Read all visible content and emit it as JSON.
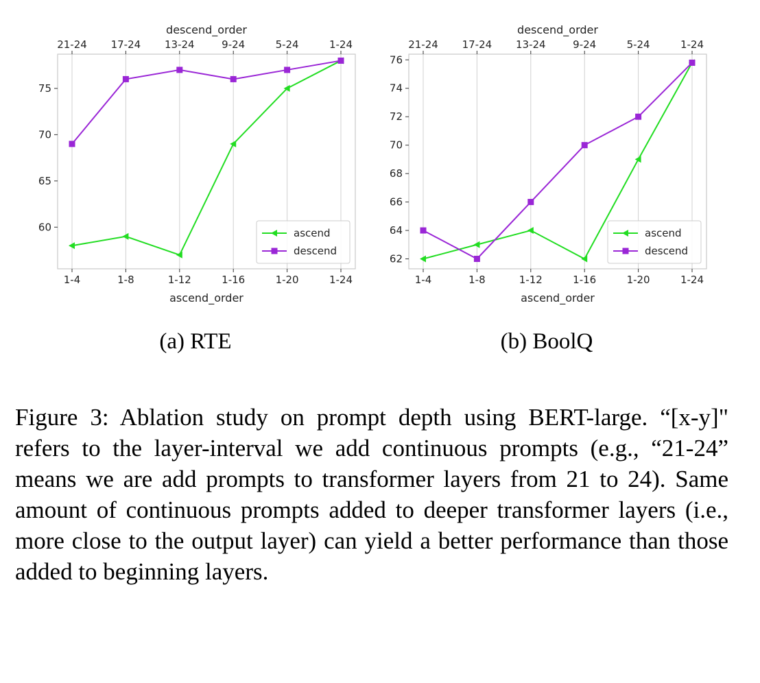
{
  "chart_data": [
    {
      "type": "line",
      "caption": "(a) RTE",
      "xlabel": "ascend_order",
      "x2label": "descend_order",
      "categories": [
        "1-4",
        "1-8",
        "1-12",
        "1-16",
        "1-20",
        "1-24"
      ],
      "top_categories": [
        "21-24",
        "17-24",
        "13-24",
        "9-24",
        "5-24",
        "1-24"
      ],
      "yticks": [
        60,
        65,
        70,
        75
      ],
      "ylim": [
        55.5,
        78.7
      ],
      "grid": "vertical",
      "legend_position": "lower-right",
      "series": [
        {
          "name": "ascend",
          "color": "#22dd22",
          "marker": "triangle-left",
          "values": [
            58,
            59,
            57,
            69,
            75,
            78
          ]
        },
        {
          "name": "descend",
          "color": "#9a26d6",
          "marker": "square",
          "values": [
            69,
            76,
            77,
            76,
            77,
            78
          ]
        }
      ]
    },
    {
      "type": "line",
      "caption": "(b) BoolQ",
      "xlabel": "ascend_order",
      "x2label": "descend_order",
      "categories": [
        "1-4",
        "1-8",
        "1-12",
        "1-16",
        "1-20",
        "1-24"
      ],
      "top_categories": [
        "21-24",
        "17-24",
        "13-24",
        "9-24",
        "5-24",
        "1-24"
      ],
      "yticks": [
        62,
        64,
        66,
        68,
        70,
        72,
        74,
        76
      ],
      "ylim": [
        61.3,
        76.4
      ],
      "grid": "vertical",
      "legend_position": "lower-right",
      "series": [
        {
          "name": "ascend",
          "color": "#22dd22",
          "marker": "triangle-left",
          "values": [
            62,
            63,
            64,
            62,
            69,
            75.8
          ]
        },
        {
          "name": "descend",
          "color": "#9a26d6",
          "marker": "square",
          "values": [
            64,
            62,
            66,
            70,
            72,
            75.8
          ]
        }
      ]
    }
  ],
  "caption": "Figure 3: Ablation study on prompt depth using BERT-large. “[x-y]\" refers to the layer-interval we add continuous prompts (e.g., “21-24” means we are add prompts to transformer layers from 21 to 24). Same amount of continuous prompts added to deeper transformer layers (i.e., more close to the output layer) can yield a better performance than those added to beginning layers."
}
